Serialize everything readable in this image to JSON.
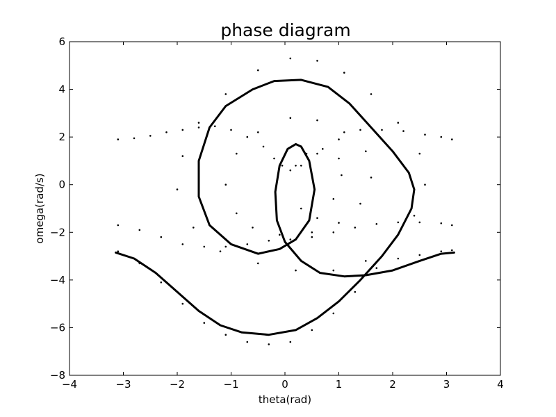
{
  "chart_data": {
    "type": "scatter",
    "title": "phase diagram",
    "xlabel": "theta(rad)",
    "ylabel": "omega(rad/s)",
    "xlim": [
      -4,
      4
    ],
    "ylim": [
      -8,
      6
    ],
    "xticks": [
      -4,
      -3,
      -2,
      -1,
      0,
      1,
      2,
      3,
      4
    ],
    "yticks": [
      -8,
      -6,
      -4,
      -2,
      0,
      2,
      4,
      6
    ],
    "xtick_labels": [
      "−4",
      "−3",
      "−2",
      "−1",
      "0",
      "1",
      "2",
      "3",
      "4"
    ],
    "ytick_labels": [
      "−8",
      "−6",
      "−4",
      "−2",
      "0",
      "2",
      "4",
      "6"
    ],
    "grid": false,
    "legend": "none",
    "series": [
      {
        "style": "line",
        "color": "#000000",
        "points": [
          [
            -3.14,
            -2.85
          ],
          [
            -2.8,
            -3.1
          ],
          [
            -2.4,
            -3.7
          ],
          [
            -2.0,
            -4.5
          ],
          [
            -1.6,
            -5.3
          ],
          [
            -1.2,
            -5.9
          ],
          [
            -0.8,
            -6.2
          ],
          [
            -0.3,
            -6.3
          ],
          [
            0.2,
            -6.1
          ],
          [
            0.6,
            -5.6
          ],
          [
            1.0,
            -4.9
          ],
          [
            1.4,
            -4.0
          ],
          [
            1.8,
            -3.0
          ],
          [
            2.1,
            -2.1
          ],
          [
            2.35,
            -1.0
          ],
          [
            2.4,
            -0.2
          ],
          [
            2.3,
            0.5
          ],
          [
            2.0,
            1.4
          ],
          [
            1.6,
            2.4
          ],
          [
            1.2,
            3.4
          ],
          [
            0.8,
            4.1
          ],
          [
            0.3,
            4.4
          ],
          [
            -0.2,
            4.35
          ],
          [
            -0.6,
            4.0
          ],
          [
            -1.1,
            3.3
          ],
          [
            -1.4,
            2.4
          ],
          [
            -1.6,
            1.0
          ],
          [
            -1.6,
            -0.5
          ],
          [
            -1.4,
            -1.7
          ],
          [
            -1.0,
            -2.5
          ],
          [
            -0.5,
            -2.9
          ],
          [
            -0.1,
            -2.7
          ],
          [
            0.2,
            -2.3
          ],
          [
            0.45,
            -1.5
          ],
          [
            0.55,
            -0.2
          ],
          [
            0.45,
            1.0
          ],
          [
            0.3,
            1.6
          ],
          [
            0.2,
            1.7
          ],
          [
            0.05,
            1.5
          ],
          [
            -0.1,
            0.8
          ],
          [
            -0.18,
            -0.3
          ],
          [
            -0.15,
            -1.5
          ],
          [
            0.0,
            -2.4
          ],
          [
            0.3,
            -3.2
          ],
          [
            0.65,
            -3.7
          ],
          [
            1.1,
            -3.85
          ],
          [
            1.5,
            -3.8
          ],
          [
            2.0,
            -3.6
          ],
          [
            2.5,
            -3.2
          ],
          [
            2.9,
            -2.9
          ],
          [
            3.14,
            -2.85
          ]
        ]
      },
      {
        "style": "dots",
        "color": "#000000",
        "points": [
          [
            -3.1,
            1.9
          ],
          [
            -2.8,
            1.95
          ],
          [
            -2.5,
            2.05
          ],
          [
            -2.2,
            2.2
          ],
          [
            -1.9,
            2.3
          ],
          [
            -1.6,
            2.4
          ],
          [
            -1.3,
            2.45
          ],
          [
            -1.0,
            2.3
          ],
          [
            -0.7,
            2.0
          ],
          [
            -0.4,
            1.6
          ],
          [
            -0.2,
            1.1
          ],
          [
            -0.05,
            0.8
          ],
          [
            0.1,
            0.6
          ],
          [
            0.3,
            0.8
          ],
          [
            0.6,
            1.3
          ],
          [
            1.0,
            1.9
          ],
          [
            1.4,
            2.3
          ],
          [
            1.8,
            2.3
          ],
          [
            2.2,
            2.25
          ],
          [
            2.6,
            2.1
          ],
          [
            2.9,
            2.0
          ],
          [
            3.1,
            1.9
          ],
          [
            -3.1,
            -1.7
          ],
          [
            -2.7,
            -1.9
          ],
          [
            -2.3,
            -2.2
          ],
          [
            -1.9,
            -2.5
          ],
          [
            -1.5,
            -2.6
          ],
          [
            -1.1,
            -2.6
          ],
          [
            -0.7,
            -2.5
          ],
          [
            -0.3,
            -2.35
          ],
          [
            0.1,
            -2.3
          ],
          [
            0.5,
            -2.2
          ],
          [
            0.9,
            -2.0
          ],
          [
            1.3,
            -1.8
          ],
          [
            1.7,
            -1.65
          ],
          [
            2.1,
            -1.58
          ],
          [
            2.5,
            -1.58
          ],
          [
            2.9,
            -1.62
          ],
          [
            3.1,
            -1.7
          ],
          [
            -3.1,
            -2.8
          ],
          [
            -2.7,
            -3.3
          ],
          [
            -2.3,
            -4.1
          ],
          [
            -1.9,
            -5.0
          ],
          [
            -1.5,
            -5.8
          ],
          [
            -1.1,
            -6.3
          ],
          [
            -0.7,
            -6.6
          ],
          [
            -0.3,
            -6.7
          ],
          [
            0.1,
            -6.6
          ],
          [
            0.5,
            -6.1
          ],
          [
            0.9,
            -5.4
          ],
          [
            1.3,
            -4.5
          ],
          [
            1.7,
            -3.5
          ],
          [
            2.1,
            -3.1
          ],
          [
            2.5,
            -2.95
          ],
          [
            2.9,
            -2.8
          ],
          [
            3.1,
            -2.75
          ],
          [
            -2.0,
            -0.2
          ],
          [
            -1.9,
            1.2
          ],
          [
            -1.6,
            2.6
          ],
          [
            -1.1,
            3.8
          ],
          [
            -0.5,
            4.8
          ],
          [
            0.1,
            5.3
          ],
          [
            0.6,
            5.2
          ],
          [
            1.1,
            4.7
          ],
          [
            1.6,
            3.8
          ],
          [
            2.1,
            2.6
          ],
          [
            2.5,
            1.3
          ],
          [
            2.6,
            0.0
          ],
          [
            2.4,
            -1.3
          ],
          [
            2.0,
            -2.4
          ],
          [
            1.5,
            -3.2
          ],
          [
            0.9,
            -3.6
          ],
          [
            0.2,
            -3.6
          ],
          [
            -0.5,
            -3.3
          ],
          [
            -1.2,
            -2.8
          ],
          [
            -1.7,
            -1.8
          ],
          [
            -1.1,
            0.0
          ],
          [
            -0.9,
            1.3
          ],
          [
            -0.5,
            2.2
          ],
          [
            0.1,
            2.8
          ],
          [
            0.6,
            2.7
          ],
          [
            1.1,
            2.2
          ],
          [
            1.5,
            1.4
          ],
          [
            1.6,
            0.3
          ],
          [
            1.4,
            -0.8
          ],
          [
            1.0,
            -1.6
          ],
          [
            0.5,
            -2.0
          ],
          [
            -0.1,
            -2.1
          ],
          [
            -0.6,
            -1.8
          ],
          [
            -0.9,
            -1.2
          ],
          [
            0.2,
            0.8
          ],
          [
            0.4,
            1.3
          ],
          [
            0.7,
            1.5
          ],
          [
            1.0,
            1.1
          ],
          [
            1.05,
            0.4
          ],
          [
            0.9,
            -0.6
          ],
          [
            0.6,
            -1.4
          ],
          [
            0.3,
            -1.0
          ]
        ]
      }
    ]
  }
}
